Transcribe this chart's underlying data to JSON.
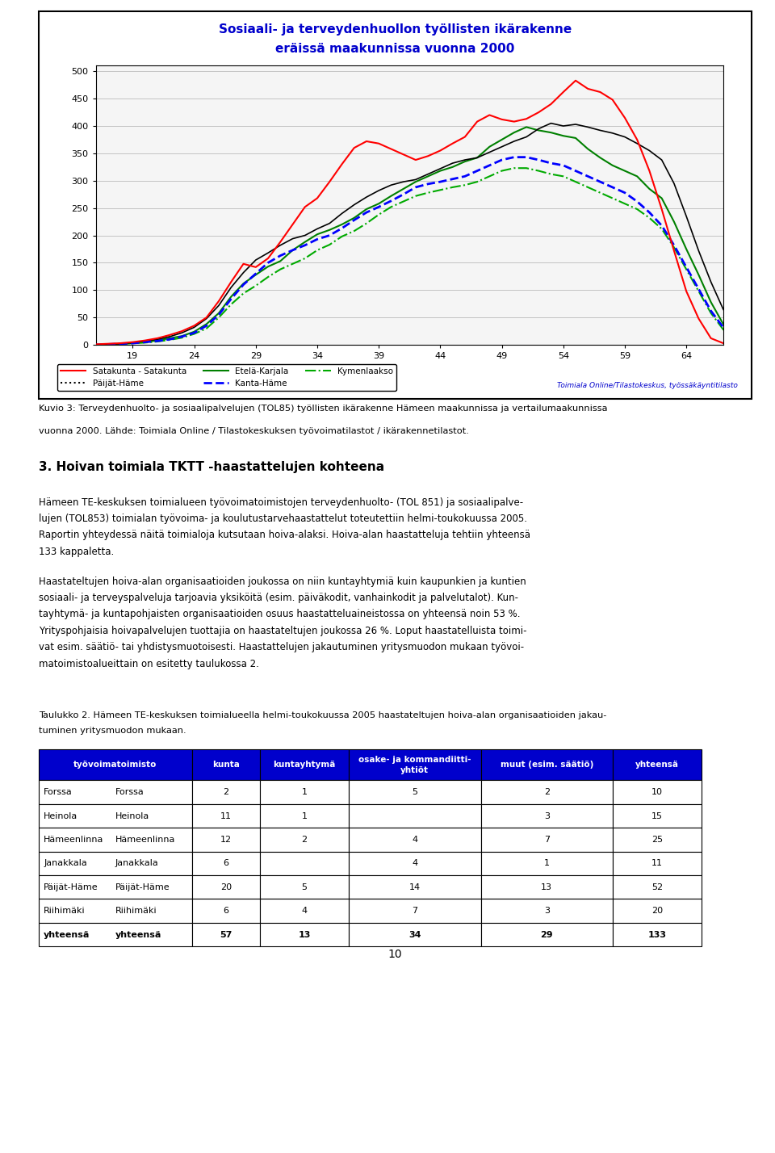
{
  "page_bg": "#ffffff",
  "chart": {
    "title_line1": "Sosiaali- ja terveydenhuollon työllisten ikärakenne",
    "title_line2": "eräissä maakunnissa vuonna 2000",
    "title_color": "#0000cc",
    "x_ticks": [
      19,
      24,
      29,
      34,
      39,
      44,
      49,
      54,
      59,
      64
    ],
    "y_ticks": [
      0,
      50,
      100,
      150,
      200,
      250,
      300,
      350,
      400,
      450,
      500
    ],
    "source_text": "Toimiala Online/Tilastokeskus, työssäkäyntitilasto",
    "source_color": "#0000cc"
  },
  "caption": "Kuvio 3: Terveydenhuolto- ja sosiaalipalvelujen (TOL85) työllisten ikärakenne Hämeen maakunnissa ja vertailumaakunnissa\nvuonna 2000. Lähde: Toimiala Online / Tilastokeskuksen työvoimatilastot / ikärakennetilastot.",
  "section_title": "3. Hoivan toimiala TKTT -haastattelujen kohteena",
  "paragraph1_lines": [
    "Hämeen TE-keskuksen toimialueen työvoimatoimistojen terveydenhuolto- (TOL 851) ja sosiaalipalve-",
    "lujen (TOL853) toimialan työvoima- ja koulutustarvehaastattelut toteutettiin helmi-toukokuussa 2005.",
    "Raportin yhteydessä näitä toimialoja kutsutaan hoiva-alaksi. Hoiva-alan haastatteluja tehtiin yhteensä",
    "133 kappaletta."
  ],
  "paragraph2_lines": [
    "Haastateltujen hoiva-alan organisaatioiden joukossa on niin kuntayhtymiä kuin kaupunkien ja kuntien",
    "sosiaali- ja terveyspalveluja tarjoavia yksiköitä (esim. päiväkodit, vanhainkodit ja palvelutalot). Kun-",
    "tayhtymä- ja kuntapohjaisten organisaatioiden osuus haastatteluaineistossa on yhteensä noin 53 %.",
    "Yrityspohjaisia hoivapalvelujen tuottajia on haastateltujen joukossa 26 %. Loput haastatelluista toimi-",
    "vat esim. säätiö- tai yhdistysmuotoisesti. Haastattelujen jakautuminen yritysmuodon mukaan työvoi-",
    "matoimistoalueittain on esitetty taulukossa 2."
  ],
  "table_caption_lines": [
    "Taulukko 2. Hämeen TE-keskuksen toimialueella helmi-toukokuussa 2005 haastateltujen hoiva-alan organisaatioiden jakau-",
    "tuminen yritysmuodon mukaan."
  ],
  "table_header_bg": "#0000cc",
  "table_header_color": "#ffffff",
  "table_headers": [
    "työvoimatoimisto",
    "kunta",
    "kuntayhtymä",
    "osake- ja kommandiitti-\nyhtiöt",
    "muut (esim. säätiö)",
    "yhteensä"
  ],
  "table_rows": [
    [
      "Forssa",
      "2",
      "1",
      "5",
      "2",
      "10"
    ],
    [
      "Heinola",
      "11",
      "1",
      "",
      "3",
      "15"
    ],
    [
      "Hämeenlinna",
      "12",
      "2",
      "4",
      "7",
      "25"
    ],
    [
      "Janakkala",
      "6",
      "",
      "4",
      "1",
      "11"
    ],
    [
      "Päijät-Häme",
      "20",
      "5",
      "14",
      "13",
      "52"
    ],
    [
      "Riihimäki",
      "6",
      "4",
      "7",
      "3",
      "20"
    ],
    [
      "yhteensä",
      "57",
      "13",
      "34",
      "29",
      "133"
    ]
  ],
  "page_number": "10"
}
